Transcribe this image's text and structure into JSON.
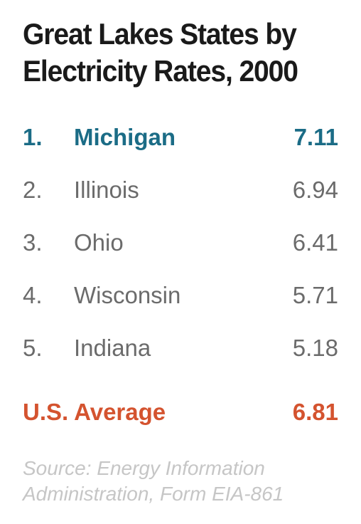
{
  "chart_data": {
    "type": "table",
    "title_lines": [
      "Great Lakes States by",
      "Electricity Rates, 2000"
    ],
    "rows": [
      {
        "rank": "1.",
        "state": "Michigan",
        "value": "7.11",
        "highlight": true
      },
      {
        "rank": "2.",
        "state": "Illinois",
        "value": "6.94",
        "highlight": false
      },
      {
        "rank": "3.",
        "state": "Ohio",
        "value": "6.41",
        "highlight": false
      },
      {
        "rank": "4.",
        "state": "Wisconsin",
        "value": "5.71",
        "highlight": false
      },
      {
        "rank": "5.",
        "state": "Indiana",
        "value": "5.18",
        "highlight": false
      }
    ],
    "average": {
      "label": "U.S. Average",
      "value": "6.81"
    },
    "source_lines": [
      "Source: Energy Information",
      "Administration, Form EIA-861"
    ],
    "colors": {
      "highlight": "#1b6c86",
      "average": "#d4532f",
      "text": "#6b6b6b",
      "title": "#1a1a1a",
      "source": "#c6c6c6"
    }
  }
}
